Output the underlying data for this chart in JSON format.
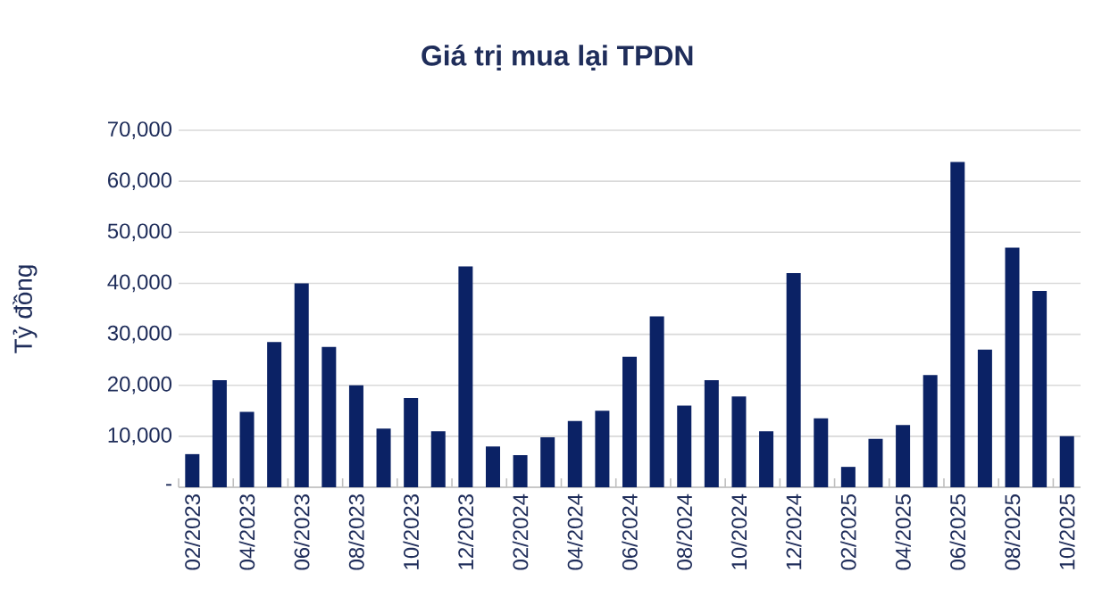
{
  "chart_data": {
    "type": "bar",
    "title": "Giá trị mua lại TPDN",
    "ylabel": "Tỷ đồng",
    "categories": [
      "02/2023",
      null,
      "04/2023",
      null,
      "06/2023",
      null,
      "08/2023",
      null,
      "10/2023",
      null,
      "12/2023",
      null,
      "02/2024",
      null,
      "04/2024",
      null,
      "06/2024",
      null,
      "08/2024",
      null,
      "10/2024",
      null,
      "12/2024",
      null,
      "02/2025",
      null,
      "04/2025",
      null,
      "06/2025",
      null,
      "08/2025",
      null,
      "10/2025"
    ],
    "values": [
      6500,
      21000,
      14800,
      28500,
      40000,
      27500,
      20000,
      11500,
      17500,
      11000,
      43300,
      8000,
      6300,
      9800,
      13000,
      15000,
      25600,
      33500,
      16000,
      21000,
      17800,
      11000,
      42000,
      13500,
      4000,
      9500,
      12200,
      22000,
      63800,
      27000,
      47000,
      38500,
      10000
    ],
    "color": "#0b2265",
    "ylim": [
      0,
      70000
    ],
    "yticks": [
      {
        "value": 0,
        "label": "-"
      },
      {
        "value": 10000,
        "label": "10,000"
      },
      {
        "value": 20000,
        "label": "20,000"
      },
      {
        "value": 30000,
        "label": "30,000"
      },
      {
        "value": 40000,
        "label": "40,000"
      },
      {
        "value": 50000,
        "label": "50,000"
      },
      {
        "value": 60000,
        "label": "60,000"
      },
      {
        "value": 70000,
        "label": "70,000"
      }
    ],
    "grid": "y"
  }
}
